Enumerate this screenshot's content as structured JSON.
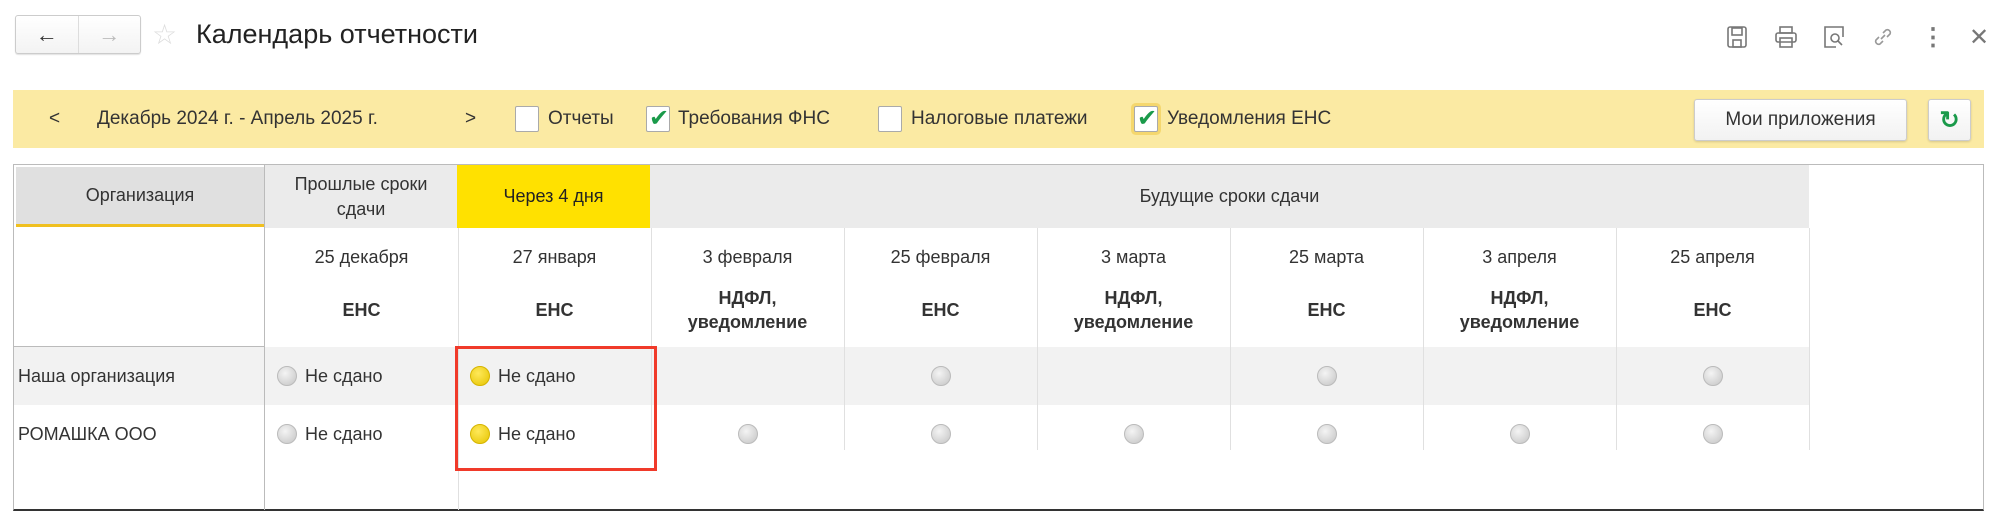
{
  "window": {
    "title": "Календарь отчетности",
    "back_icon": "arrow-left",
    "forward_icon": "arrow-right",
    "favorite_icon": "star"
  },
  "toolbar_icons": [
    "save-icon",
    "print-icon",
    "preview-icon",
    "link-icon",
    "more-icon",
    "close-icon"
  ],
  "filter": {
    "prev": "<",
    "period": "Декабрь 2024 г. - Апрель 2025 г.",
    "next": ">",
    "checkboxes": [
      {
        "label": "Отчеты",
        "checked": false
      },
      {
        "label": "Требования ФНС",
        "checked": true
      },
      {
        "label": "Налоговые платежи",
        "checked": false
      },
      {
        "label": "Уведомления ЕНС",
        "checked": true
      }
    ],
    "my_apps": "Мои приложения",
    "refresh_icon": "refresh"
  },
  "table": {
    "org_header": "Организация",
    "group_past": "Прошлые сроки сдачи",
    "group_soon": "Через 4 дня",
    "group_future": "Будущие сроки сдачи",
    "columns": [
      {
        "date": "25 декабря",
        "type": "ЕНС"
      },
      {
        "date": "27 января",
        "type": "ЕНС"
      },
      {
        "date": "3 февраля",
        "type": "НДФЛ, уведомление"
      },
      {
        "date": "25 февраля",
        "type": "ЕНС"
      },
      {
        "date": "3 марта",
        "type": "НДФЛ, уведомление"
      },
      {
        "date": "25 марта",
        "type": "ЕНС"
      },
      {
        "date": "3 апреля",
        "type": "НДФЛ, уведомление"
      },
      {
        "date": "25 апреля",
        "type": "ЕНС"
      }
    ],
    "rows": [
      {
        "org": "Наша организация",
        "cells": [
          {
            "status": "gray",
            "text": "Не сдано"
          },
          {
            "status": "yellow",
            "text": "Не сдано"
          },
          null,
          {
            "status": "gray",
            "text": ""
          },
          null,
          {
            "status": "gray",
            "text": ""
          },
          null,
          {
            "status": "gray",
            "text": ""
          }
        ]
      },
      {
        "org": "РОМАШКА ООО",
        "cells": [
          {
            "status": "gray",
            "text": "Не сдано"
          },
          {
            "status": "yellow",
            "text": "Не сдано"
          },
          {
            "status": "gray",
            "text": ""
          },
          {
            "status": "gray",
            "text": ""
          },
          {
            "status": "gray",
            "text": ""
          },
          {
            "status": "gray",
            "text": ""
          },
          {
            "status": "gray",
            "text": ""
          },
          {
            "status": "gray",
            "text": ""
          }
        ]
      }
    ]
  },
  "colors": {
    "accent_yellow": "#ffe100",
    "filter_bg": "#fbeaa3",
    "highlight": "#f03a2a",
    "check": "#1a9a4a"
  }
}
